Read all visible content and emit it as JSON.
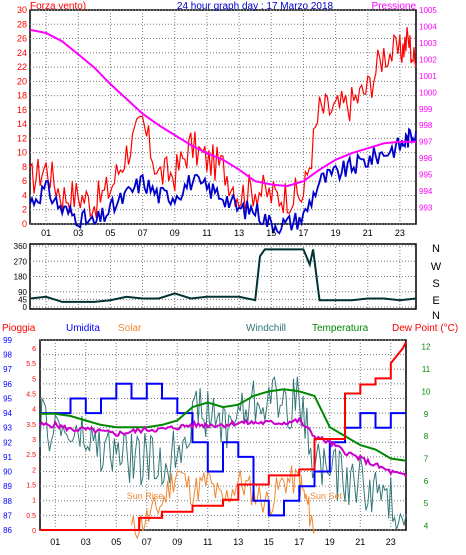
{
  "colors": {
    "wind": "#ff0000",
    "pressure": "#ff00ff",
    "gust": "#0000cc",
    "direction": "#003333",
    "rain": "#ff0000",
    "humidity": "#0000ff",
    "solar": "#ee8833",
    "windchill": "#337777",
    "temperature": "#008800",
    "dewpoint": "#cc00cc",
    "grid": "#7a7a7a",
    "frame": "#000000",
    "pressure_axis": "#ff00ff",
    "wind_axis": "#ff0000",
    "rain_axis": "#ff0000",
    "humidity_axis": "#0000ff",
    "temp_axis": "#008800"
  },
  "chart_data": [
    {
      "type": "line",
      "title": "24 hour graph day : 17 Marzo 2018",
      "left_label": "Forza vento)",
      "right_label": "Pressione",
      "x_ticks": [
        "01",
        "03",
        "05",
        "07",
        "09",
        "11",
        "13",
        "15",
        "17",
        "19",
        "21",
        "23"
      ],
      "left_ticks": [
        "0",
        "2",
        "4",
        "6",
        "8",
        "10",
        "12",
        "14",
        "16",
        "18",
        "20",
        "22",
        "24",
        "26",
        "28",
        "30"
      ],
      "right_ticks": [
        "993",
        "994",
        "995",
        "996",
        "997",
        "998",
        "999",
        "1000",
        "1001",
        "1002",
        "1003",
        "1004",
        "1005"
      ],
      "xlim": [
        0,
        24
      ],
      "ylim_left": [
        0,
        30
      ],
      "ylim_right": [
        992,
        1005
      ],
      "series": [
        {
          "axis": "left",
          "x": [
            0,
            1,
            2,
            3,
            4,
            5,
            6,
            7,
            8,
            9,
            10,
            11,
            12,
            13,
            14,
            15,
            16,
            17,
            18,
            19,
            20,
            21,
            22,
            23,
            23.5,
            24
          ],
          "values": [
            6,
            8,
            4,
            4,
            3,
            5,
            10,
            14,
            7,
            7,
            11,
            9,
            8,
            4,
            5,
            4,
            4,
            4,
            16,
            16,
            17,
            19,
            24,
            24,
            26,
            22
          ]
        },
        {
          "axis": "left",
          "x": [
            0,
            1,
            2,
            3,
            4,
            5,
            6,
            7,
            8,
            9,
            10,
            11,
            12,
            13,
            14,
            15,
            16,
            17,
            18,
            19,
            20,
            21,
            22,
            23,
            23.5,
            24
          ],
          "values": [
            3,
            5,
            2,
            1,
            0,
            2,
            4,
            6,
            4,
            4,
            6,
            5,
            4,
            2,
            2,
            0,
            0,
            1,
            6,
            7,
            8,
            9,
            10,
            11,
            12,
            13
          ]
        },
        {
          "axis": "right",
          "x": [
            0,
            1,
            2,
            3,
            4,
            5,
            6,
            7,
            8,
            9,
            10,
            11,
            12,
            13,
            14,
            15,
            16,
            17,
            18,
            19,
            20,
            21,
            22,
            23,
            24
          ],
          "values": [
            1003.8,
            1003.6,
            1003.1,
            1002.3,
            1001.5,
            1000.5,
            999.6,
            998.7,
            998.0,
            997.4,
            996.8,
            996.3,
            995.9,
            995.3,
            994.6,
            994.4,
            994.3,
            994.6,
            995.3,
            995.9,
            996.3,
            996.6,
            996.9,
            997.0,
            997.0
          ]
        }
      ]
    },
    {
      "type": "line",
      "right_label": "N W S E N",
      "y_ticks": [
        "0",
        "45",
        "90",
        "180",
        "270",
        "360"
      ],
      "ylim": [
        0,
        360
      ],
      "xlim": [
        0,
        24
      ],
      "series": [
        {
          "x": [
            0,
            1,
            2,
            3,
            4,
            5,
            6,
            7,
            8,
            9,
            10,
            11,
            12,
            13,
            14,
            14.3,
            14.6,
            15,
            16,
            17,
            17.4,
            17.6,
            18,
            19,
            20,
            21,
            22,
            23,
            24
          ],
          "values": [
            50,
            60,
            30,
            30,
            30,
            40,
            60,
            50,
            50,
            80,
            50,
            60,
            60,
            60,
            40,
            300,
            340,
            340,
            340,
            340,
            250,
            340,
            40,
            40,
            40,
            50,
            50,
            40,
            50
          ]
        }
      ]
    },
    {
      "type": "line",
      "header_labels": [
        "Pioggia",
        "Umidita",
        "Solar",
        "Windchill",
        "Temperatura",
        "Dew Point (°C)"
      ],
      "x_ticks": [
        "01",
        "03",
        "05",
        "07",
        "09",
        "11",
        "13",
        "15",
        "17",
        "19",
        "21",
        "23"
      ],
      "humidity_ticks": [
        "86",
        "87",
        "88",
        "89",
        "90",
        "91",
        "92",
        "93",
        "94",
        "95",
        "96",
        "97",
        "98",
        "99"
      ],
      "rain_ticks": [
        "0",
        "0.5",
        "1",
        "1.5",
        "2",
        "2.5",
        "3",
        "3.5",
        "4",
        "4.5",
        "5",
        "5.5",
        "6"
      ],
      "temp_ticks": [
        "4",
        "5",
        "6",
        "7",
        "8",
        "9",
        "10",
        "11",
        "12"
      ],
      "annotations": [
        "Sun Rise",
        "Sun Set"
      ],
      "xlim": [
        0,
        24
      ],
      "ylim_humidity": [
        86,
        99
      ],
      "ylim_rain": [
        0,
        6.2
      ],
      "ylim_temp": [
        3.8,
        12.3
      ],
      "series": [
        {
          "axis": "rain",
          "x": [
            0,
            6.5,
            6.5,
            8,
            8,
            10,
            10,
            12,
            12,
            13,
            13,
            15,
            15,
            17,
            17,
            18,
            18,
            20,
            20,
            21,
            21,
            22,
            22,
            23,
            23,
            23.8,
            24
          ],
          "values": [
            0,
            0,
            0.4,
            0.4,
            0.6,
            0.6,
            0.8,
            0.8,
            1.0,
            1.0,
            1.5,
            1.5,
            1.8,
            1.8,
            2.0,
            2.0,
            3.0,
            3.0,
            4.5,
            4.5,
            4.8,
            4.8,
            5.0,
            5.0,
            5.5,
            6.0,
            6.2
          ]
        },
        {
          "axis": "humidity",
          "x": [
            0,
            2,
            2,
            3,
            3,
            4,
            4,
            5,
            5,
            6,
            6,
            7,
            7,
            8,
            8,
            9,
            9,
            10,
            10,
            11,
            11,
            12,
            12,
            13,
            13,
            14,
            14,
            15,
            15,
            16,
            16,
            17,
            17,
            18,
            18,
            19,
            19,
            20,
            20,
            21,
            21,
            22,
            22,
            23,
            23,
            24
          ],
          "values": [
            94,
            94,
            95,
            95,
            94,
            94,
            95,
            95,
            96,
            96,
            95,
            95,
            96,
            96,
            95,
            95,
            94,
            94,
            92,
            92,
            90,
            90,
            92,
            92,
            91,
            91,
            88,
            88,
            87,
            87,
            88,
            88,
            89,
            89,
            90,
            90,
            92,
            92,
            93,
            93,
            94,
            94,
            93,
            93,
            94,
            94
          ]
        },
        {
          "axis": "temp",
          "x": [
            0,
            1,
            2,
            3,
            4,
            5,
            6,
            7,
            8,
            9,
            10,
            11,
            12,
            13,
            14,
            15,
            16,
            17,
            18,
            19,
            20,
            21,
            22,
            23,
            24
          ],
          "values": [
            9.0,
            9.0,
            8.9,
            8.7,
            8.5,
            8.4,
            8.4,
            8.4,
            8.5,
            8.7,
            9.3,
            9.5,
            9.3,
            9.4,
            9.8,
            10.0,
            10.1,
            10.0,
            9.8,
            8.4,
            8.0,
            7.6,
            7.4,
            7.0,
            6.9
          ]
        },
        {
          "axis": "temp",
          "x": [
            0,
            1,
            2,
            3,
            4,
            5,
            6,
            7,
            8,
            9,
            10,
            11,
            12,
            13,
            14,
            15,
            16,
            17,
            18,
            19,
            20,
            21,
            22,
            23,
            24
          ],
          "values": [
            8.5,
            8.5,
            8.3,
            8.3,
            8.2,
            8.1,
            8.2,
            8.3,
            8.3,
            8.4,
            8.5,
            8.5,
            8.5,
            8.6,
            8.6,
            8.6,
            8.6,
            8.7,
            8.0,
            7.7,
            7.3,
            7.0,
            6.7,
            6.4,
            6.2
          ]
        },
        {
          "axis": "temp",
          "x": [
            0,
            1,
            2,
            3,
            4,
            5,
            6,
            7,
            8,
            9,
            10,
            11,
            12,
            13,
            14,
            15,
            16,
            17,
            18,
            19,
            20,
            21,
            22,
            23,
            24
          ],
          "values": [
            8.5,
            8.4,
            8.0,
            7.8,
            7.4,
            7.2,
            7.0,
            7.0,
            6.5,
            7.5,
            9.0,
            9.0,
            8.5,
            9.0,
            9.5,
            9.8,
            9.5,
            9.5,
            7.0,
            6.5,
            6.0,
            6.0,
            5.5,
            5.0,
            4.5
          ]
        },
        {
          "axis": "temp",
          "x": [
            6,
            7,
            8,
            9,
            10,
            11,
            12,
            13,
            14,
            15,
            16,
            17,
            17.5,
            18
          ],
          "values": [
            3.8,
            4.3,
            5.0,
            6.5,
            5.5,
            6.0,
            5.0,
            6.0,
            5.5,
            5.0,
            6.0,
            6.0,
            5.0,
            3.8
          ]
        }
      ]
    }
  ]
}
